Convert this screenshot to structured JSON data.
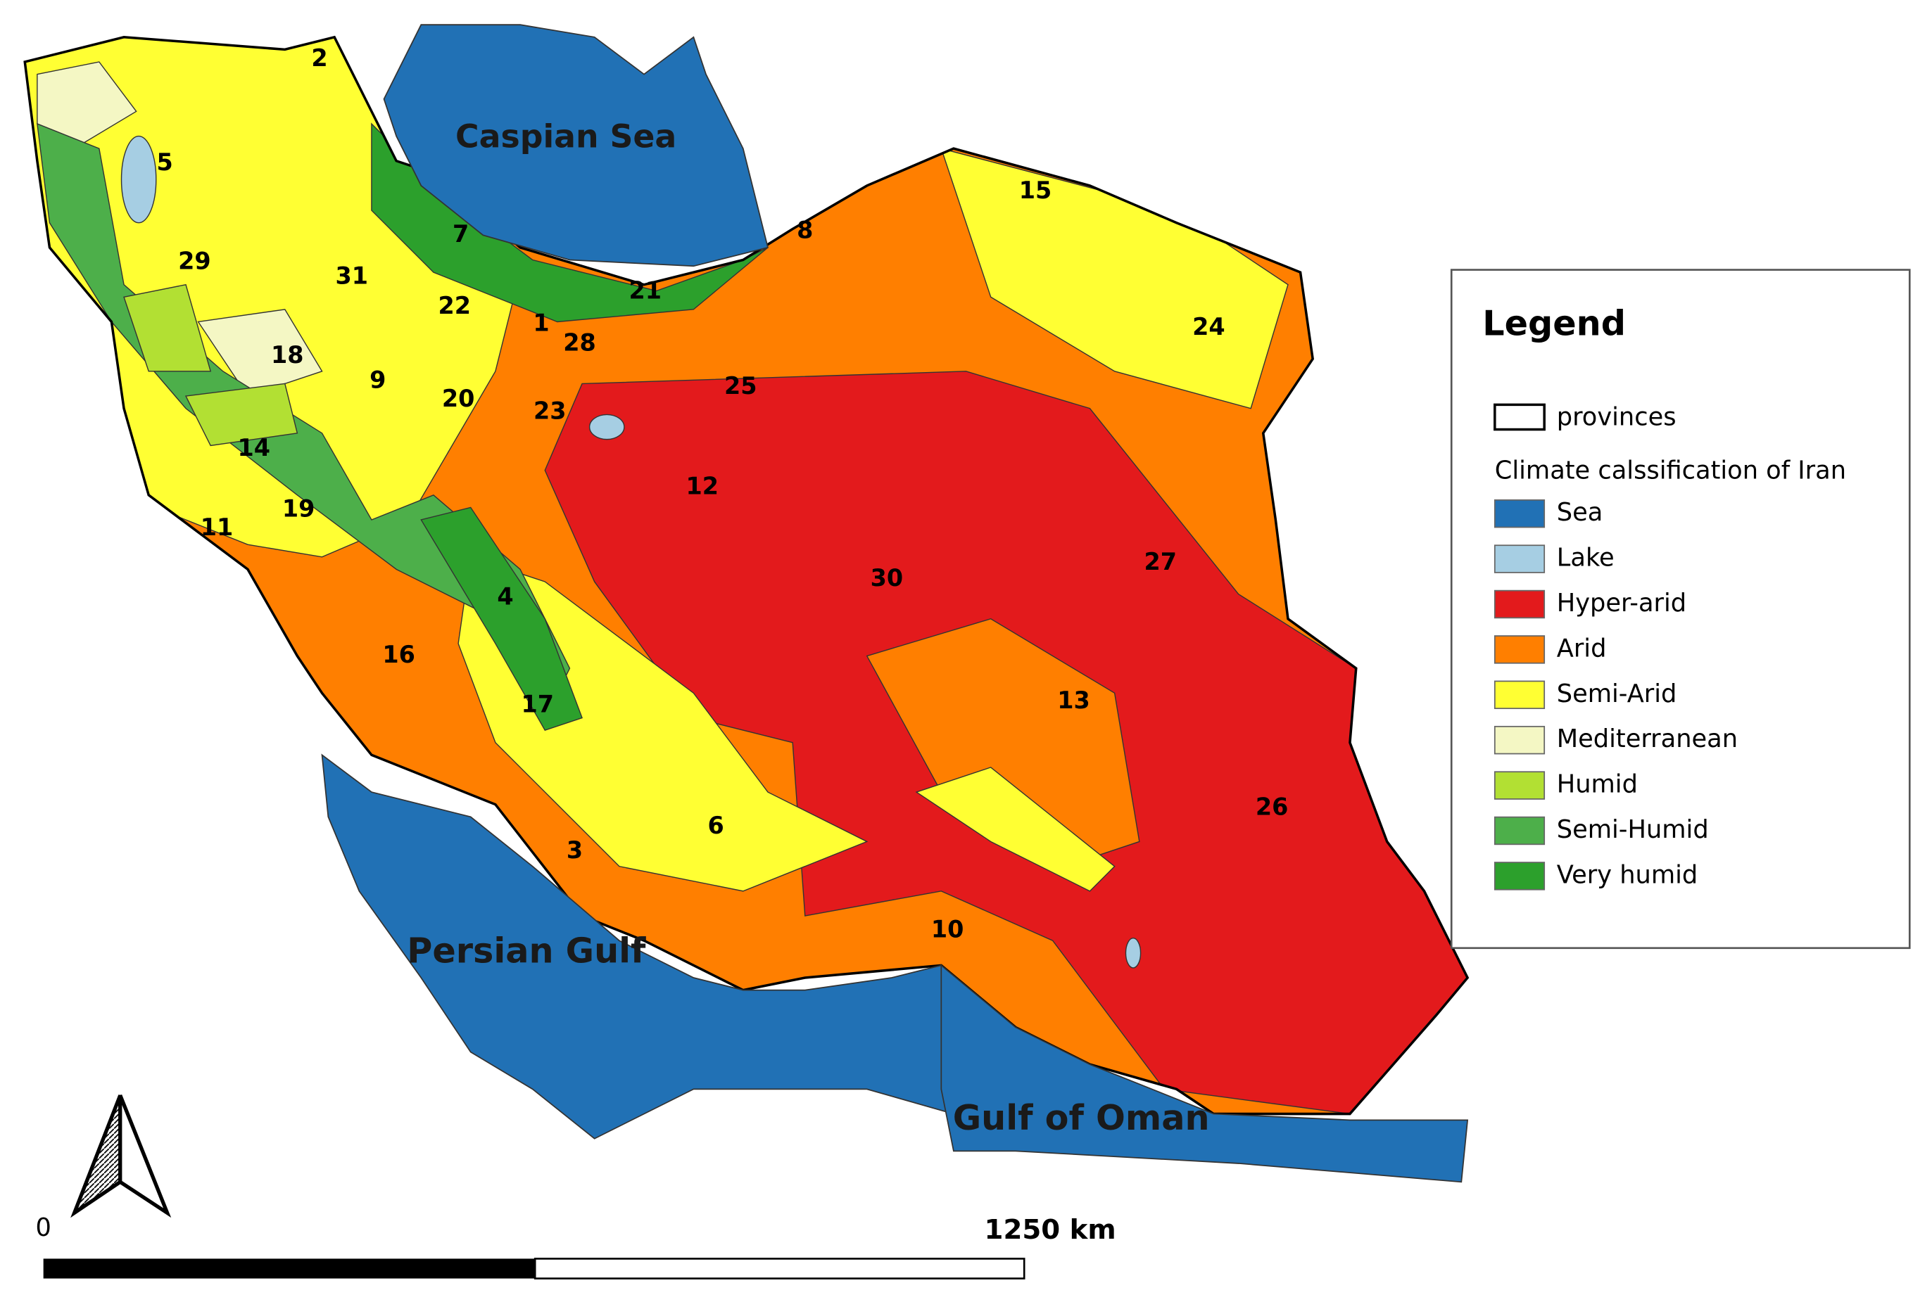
{
  "map": {
    "seas": [
      "Caspian Sea",
      "Persian Gulf",
      "Gulf of Oman"
    ],
    "provinces": [
      "2",
      "5",
      "29",
      "31",
      "7",
      "22",
      "18",
      "9",
      "20",
      "1",
      "28",
      "23",
      "21",
      "8",
      "15",
      "24",
      "25",
      "14",
      "19",
      "11",
      "12",
      "30",
      "27",
      "4",
      "16",
      "17",
      "13",
      "6",
      "3",
      "10",
      "26"
    ]
  },
  "legend": {
    "title": "Legend",
    "provinces": "provinces",
    "classification_title": "Climate calssification of Iran",
    "items": [
      {
        "label": "Sea",
        "color": "#2171b5"
      },
      {
        "label": "Lake",
        "color": "#a6cee3"
      },
      {
        "label": "Hyper-arid",
        "color": "#e31a1c"
      },
      {
        "label": "Arid",
        "color": "#ff7f00"
      },
      {
        "label": "Semi-Arid",
        "color": "#ffff33"
      },
      {
        "label": "Mediterranean",
        "color": "#f4f7c4"
      },
      {
        "label": "Humid",
        "color": "#b2e033"
      },
      {
        "label": "Semi-Humid",
        "color": "#4daf4a"
      },
      {
        "label": "Very humid",
        "color": "#2ca02c"
      }
    ]
  },
  "scale_bar": {
    "start": "0",
    "end": "1250 km"
  }
}
